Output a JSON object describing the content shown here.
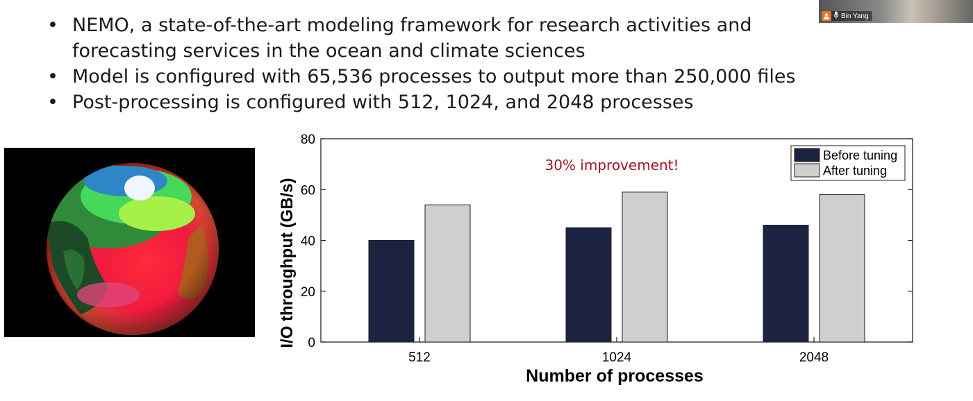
{
  "slide": {
    "bullets": [
      "NEMO, a state-of-the-art modeling framework for research activities and forecasting services in the ocean and climate sciences",
      "Model is configured with 65,536 processes to output more than 250,000 files",
      "Post-processing is configured with 512, 1024, and 2048 processes"
    ],
    "bullet_glyph": "•"
  },
  "video_tile": {
    "participant_name": "Bin Yang",
    "icons": [
      "person-avatar-icon",
      "microphone-icon"
    ],
    "avatar_color": "#e8742a"
  },
  "globe_image": {
    "description_icon": "earth-ocean-temperature-globe"
  },
  "chart_data": {
    "type": "bar",
    "categories": [
      "512",
      "1024",
      "2048"
    ],
    "series": [
      {
        "name": "Before tuning",
        "values": [
          40,
          45,
          46
        ],
        "color": "#1c2340"
      },
      {
        "name": "After tuning",
        "values": [
          54,
          59,
          58
        ],
        "color": "#cfcfcf"
      }
    ],
    "xlabel": "Number of processes",
    "ylabel": "I/O throughput (GB/s)",
    "ylim": [
      0,
      80
    ],
    "yticks": [
      0,
      20,
      40,
      60,
      80
    ],
    "grid": false,
    "legend_position": "top-right",
    "annotation": "30% improvement!",
    "annotation_color": "#a0142a"
  }
}
